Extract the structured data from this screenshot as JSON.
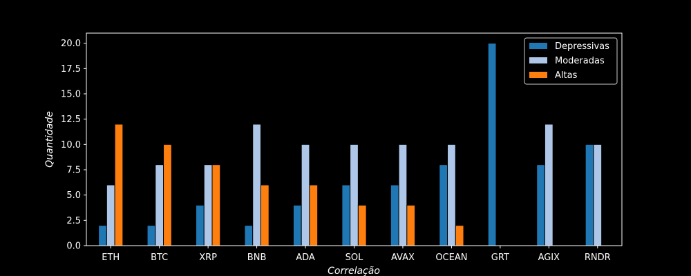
{
  "chart_data": {
    "type": "bar",
    "xlabel": "Correlação",
    "ylabel": "Quantidade",
    "categories": [
      "ETH",
      "BTC",
      "XRP",
      "BNB",
      "ADA",
      "SOL",
      "AVAX",
      "OCEAN",
      "GRT",
      "AGIX",
      "RNDR"
    ],
    "series": [
      {
        "name": "Depressivas",
        "color": "#1f77b4",
        "values": [
          2,
          2,
          4,
          2,
          4,
          6,
          6,
          8,
          20,
          8,
          10
        ]
      },
      {
        "name": "Moderadas",
        "color": "#aec7e8",
        "values": [
          6,
          8,
          8,
          12,
          10,
          10,
          10,
          10,
          0,
          12,
          10
        ]
      },
      {
        "name": "Altas",
        "color": "#ff7f0e",
        "values": [
          12,
          10,
          8,
          6,
          6,
          4,
          4,
          2,
          0,
          0,
          0
        ]
      }
    ],
    "ylim": [
      0,
      21
    ],
    "yticks": [
      "0.0",
      "2.5",
      "5.0",
      "7.5",
      "10.0",
      "12.5",
      "15.0",
      "17.5",
      "20.0"
    ],
    "grid": false,
    "legend_position": "top-right"
  }
}
